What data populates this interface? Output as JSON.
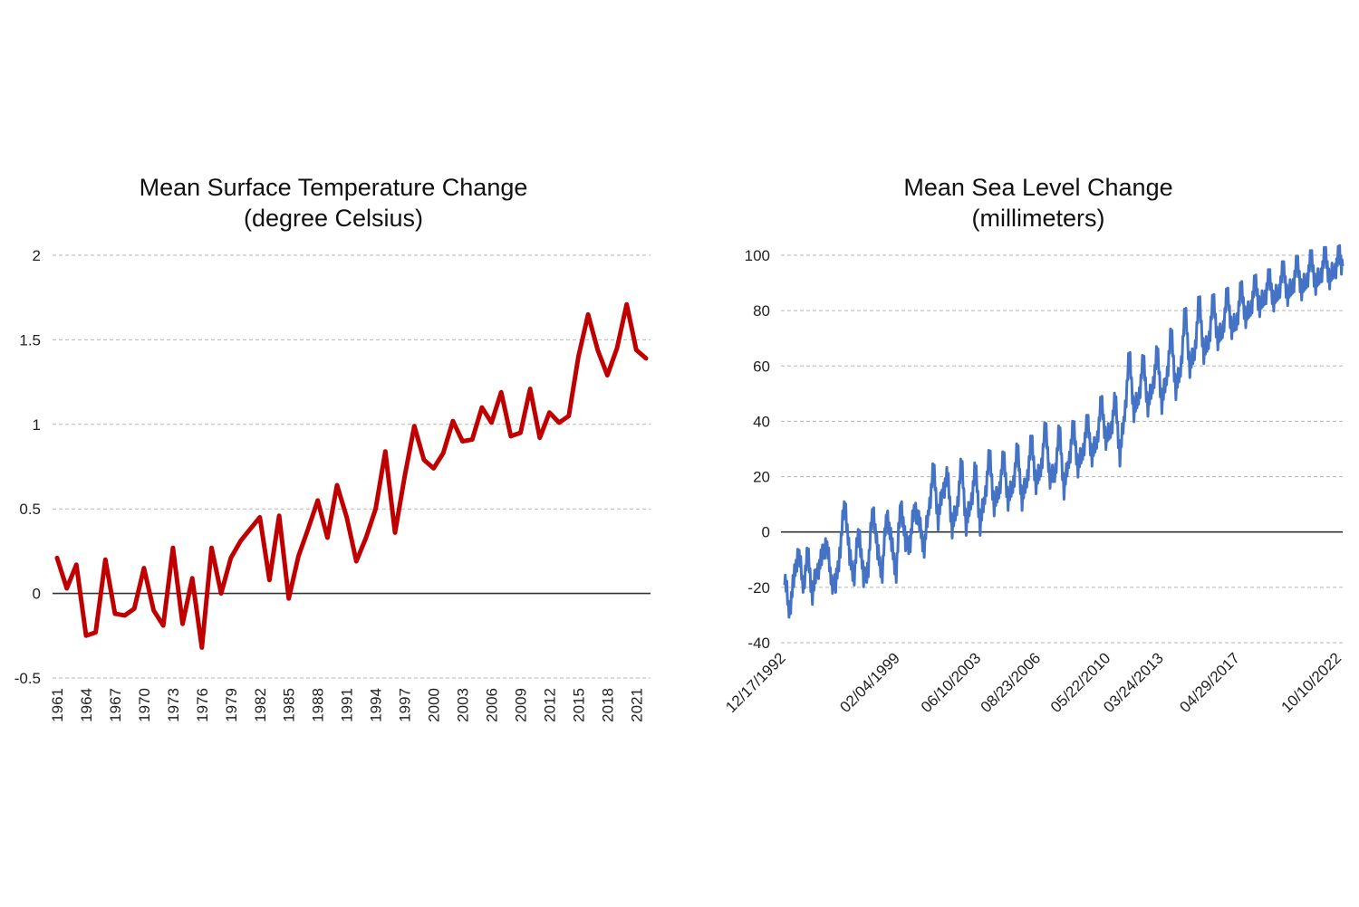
{
  "chart_data": [
    {
      "type": "line",
      "title": "Mean Surface Temperature Change",
      "subtitle": "(degree Celsius)",
      "xlabel": "",
      "ylabel": "",
      "ylim": [
        -0.5,
        2
      ],
      "yticks": [
        2,
        1.5,
        1,
        0.5,
        0,
        -0.5
      ],
      "ytick_labels": [
        "2",
        "1.5",
        "1",
        "0.5",
        "0",
        "-0.5"
      ],
      "grid": true,
      "legend": "none",
      "line_color": "#c00000",
      "x": [
        1961,
        1962,
        1963,
        1964,
        1965,
        1966,
        1967,
        1968,
        1969,
        1970,
        1971,
        1972,
        1973,
        1974,
        1975,
        1976,
        1977,
        1978,
        1979,
        1980,
        1981,
        1982,
        1983,
        1984,
        1985,
        1986,
        1987,
        1988,
        1989,
        1990,
        1991,
        1992,
        1993,
        1994,
        1995,
        1996,
        1997,
        1998,
        1999,
        2000,
        2001,
        2002,
        2003,
        2004,
        2005,
        2006,
        2007,
        2008,
        2009,
        2010,
        2011,
        2012,
        2013,
        2014,
        2015,
        2016,
        2017,
        2018,
        2019,
        2020,
        2021,
        2022
      ],
      "xtick_labels": [
        "1961",
        "1964",
        "1967",
        "1970",
        "1973",
        "1976",
        "1979",
        "1982",
        "1985",
        "1988",
        "1991",
        "1994",
        "1997",
        "2000",
        "2003",
        "2006",
        "2009",
        "2012",
        "2015",
        "2018",
        "2021"
      ],
      "series": [
        {
          "name": "Temperature change",
          "values": [
            0.21,
            0.03,
            0.17,
            -0.25,
            -0.23,
            0.2,
            -0.12,
            -0.13,
            -0.09,
            0.15,
            -0.1,
            -0.19,
            0.27,
            -0.18,
            0.09,
            -0.32,
            0.27,
            0.0,
            0.21,
            0.31,
            0.38,
            0.45,
            0.08,
            0.46,
            -0.03,
            0.22,
            0.38,
            0.55,
            0.33,
            0.64,
            0.45,
            0.19,
            0.33,
            0.5,
            0.84,
            0.36,
            0.69,
            0.99,
            0.79,
            0.74,
            0.83,
            1.02,
            0.9,
            0.91,
            1.1,
            1.01,
            1.19,
            0.93,
            0.95,
            1.21,
            0.92,
            1.07,
            1.01,
            1.05,
            1.4,
            1.65,
            1.44,
            1.29,
            1.45,
            1.71,
            1.44,
            1.39
          ]
        }
      ]
    },
    {
      "type": "line",
      "title": "Mean Sea Level Change",
      "subtitle": "(millimeters)",
      "xlabel": "",
      "ylabel": "",
      "ylim": [
        -40,
        100
      ],
      "yticks": [
        100,
        80,
        60,
        40,
        20,
        0,
        -20,
        -40
      ],
      "ytick_labels": [
        "100",
        "80",
        "60",
        "40",
        "20",
        "0",
        "-20",
        "-40"
      ],
      "grid": true,
      "legend": "none",
      "line_color": "#4472c4",
      "xlim": [
        1992.96,
        2022.9
      ],
      "xtick_positions": [
        1992.96,
        1999.09,
        2003.44,
        2006.64,
        2010.39,
        2013.23,
        2017.32,
        2022.77
      ],
      "xtick_labels": [
        "12/17/1992",
        "02/04/1999",
        "06/10/2003",
        "08/23/2006",
        "05/22/2010",
        "03/24/2013",
        "04/29/2017",
        "10/10/2022"
      ],
      "x": [
        1992.96,
        1993.2,
        1993.45,
        1993.7,
        1993.95,
        1994.2,
        1994.45,
        1994.7,
        1994.95,
        1995.2,
        1995.45,
        1995.7,
        1995.95,
        1996.2,
        1996.45,
        1996.7,
        1996.95,
        1997.2,
        1997.45,
        1997.7,
        1997.95,
        1998.2,
        1998.45,
        1998.7,
        1998.95,
        1999.2,
        1999.45,
        1999.7,
        1999.95,
        2000.2,
        2000.45,
        2000.7,
        2000.95,
        2001.2,
        2001.45,
        2001.7,
        2001.95,
        2002.2,
        2002.45,
        2002.7,
        2002.95,
        2003.2,
        2003.45,
        2003.7,
        2003.95,
        2004.2,
        2004.45,
        2004.7,
        2004.95,
        2005.2,
        2005.45,
        2005.7,
        2005.95,
        2006.2,
        2006.45,
        2006.7,
        2006.95,
        2007.2,
        2007.45,
        2007.7,
        2007.95,
        2008.2,
        2008.45,
        2008.7,
        2008.95,
        2009.2,
        2009.45,
        2009.7,
        2009.95,
        2010.2,
        2010.45,
        2010.7,
        2010.95,
        2011.2,
        2011.45,
        2011.7,
        2011.95,
        2012.2,
        2012.45,
        2012.7,
        2012.95,
        2013.2,
        2013.45,
        2013.7,
        2013.95,
        2014.2,
        2014.45,
        2014.7,
        2014.95,
        2015.2,
        2015.45,
        2015.7,
        2015.95,
        2016.2,
        2016.45,
        2016.7,
        2016.95,
        2017.2,
        2017.45,
        2017.7,
        2017.95,
        2018.2,
        2018.45,
        2018.7,
        2018.95,
        2019.2,
        2019.45,
        2019.7,
        2019.95,
        2020.2,
        2020.45,
        2020.7,
        2020.95,
        2021.2,
        2021.45,
        2021.7,
        2021.95,
        2022.2,
        2022.45,
        2022.7,
        2022.9
      ],
      "series": [
        {
          "name": "Sea level change",
          "values": [
            -15,
            -29,
            -18,
            -6,
            -20,
            -8,
            -22,
            -14,
            -10,
            -3,
            -17,
            -20,
            -5,
            12,
            -10,
            -15,
            2,
            -18,
            -12,
            10,
            -8,
            -14,
            8,
            -5,
            -14,
            12,
            -5,
            -3,
            10,
            2,
            -5,
            8,
            23,
            5,
            15,
            20,
            2,
            8,
            25,
            3,
            10,
            23,
            3,
            12,
            28,
            10,
            14,
            27,
            12,
            16,
            30,
            12,
            18,
            33,
            18,
            22,
            38,
            20,
            20,
            37,
            16,
            25,
            38,
            24,
            28,
            40,
            28,
            32,
            47,
            34,
            36,
            48,
            28,
            42,
            64,
            44,
            48,
            62,
            46,
            52,
            65,
            47,
            55,
            72,
            52,
            58,
            80,
            60,
            64,
            84,
            65,
            68,
            84,
            70,
            72,
            86,
            74,
            75,
            88,
            78,
            80,
            90,
            82,
            84,
            92,
            84,
            86,
            95,
            86,
            88,
            97,
            88,
            90,
            99,
            90,
            92,
            100,
            92,
            94,
            100,
            96
          ]
        }
      ]
    }
  ]
}
